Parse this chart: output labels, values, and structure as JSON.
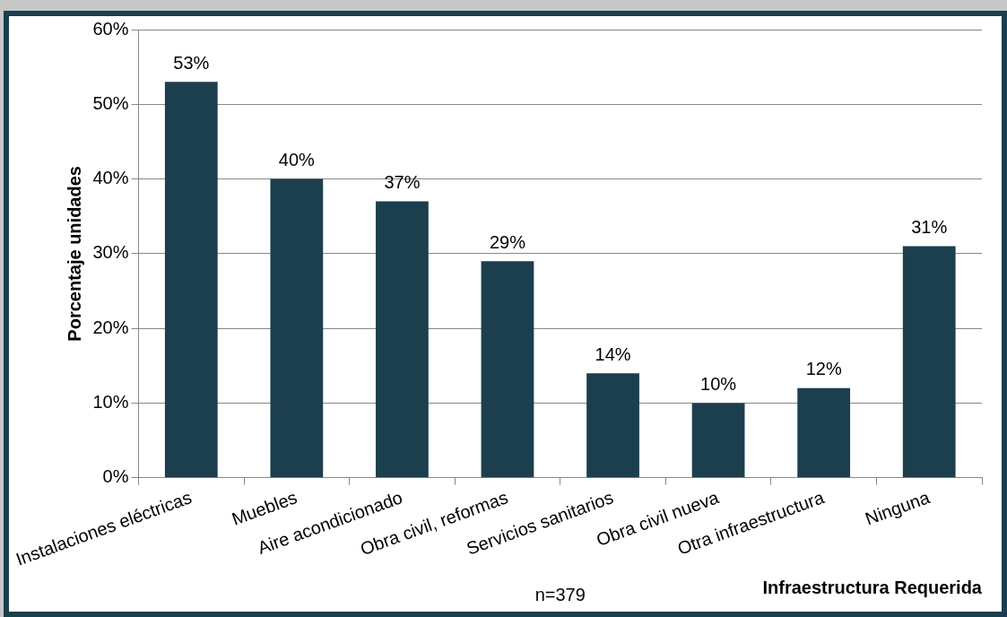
{
  "chart_data": {
    "type": "bar",
    "ylabel": "Porcentaje unidades",
    "xlabel": "Infraestructura Requerida",
    "annotations": [
      "n=379"
    ],
    "categories": [
      "Instalaciones eléctricas",
      "Muebles",
      "Aire acondicionado",
      "Obra civil, reformas",
      "Servicios sanitarios",
      "Obra civil nueva",
      "Otra infraestructura",
      "Ninguna"
    ],
    "values": [
      53,
      40,
      37,
      29,
      14,
      10,
      12,
      31
    ],
    "color": "#1c3f4e",
    "ylim": [
      0,
      60
    ],
    "yticks": [
      {
        "value": 0,
        "label": "0%"
      },
      {
        "value": 10,
        "label": "10%"
      },
      {
        "value": 20,
        "label": "20%"
      },
      {
        "value": 30,
        "label": "30%"
      },
      {
        "value": 40,
        "label": "40%"
      },
      {
        "value": 50,
        "label": "50%"
      },
      {
        "value": 60,
        "label": "60%"
      }
    ],
    "value_labels": [
      "53%",
      "40%",
      "37%",
      "29%",
      "14%",
      "10%",
      "12%",
      "31%"
    ],
    "grid": "y",
    "legend": false
  }
}
